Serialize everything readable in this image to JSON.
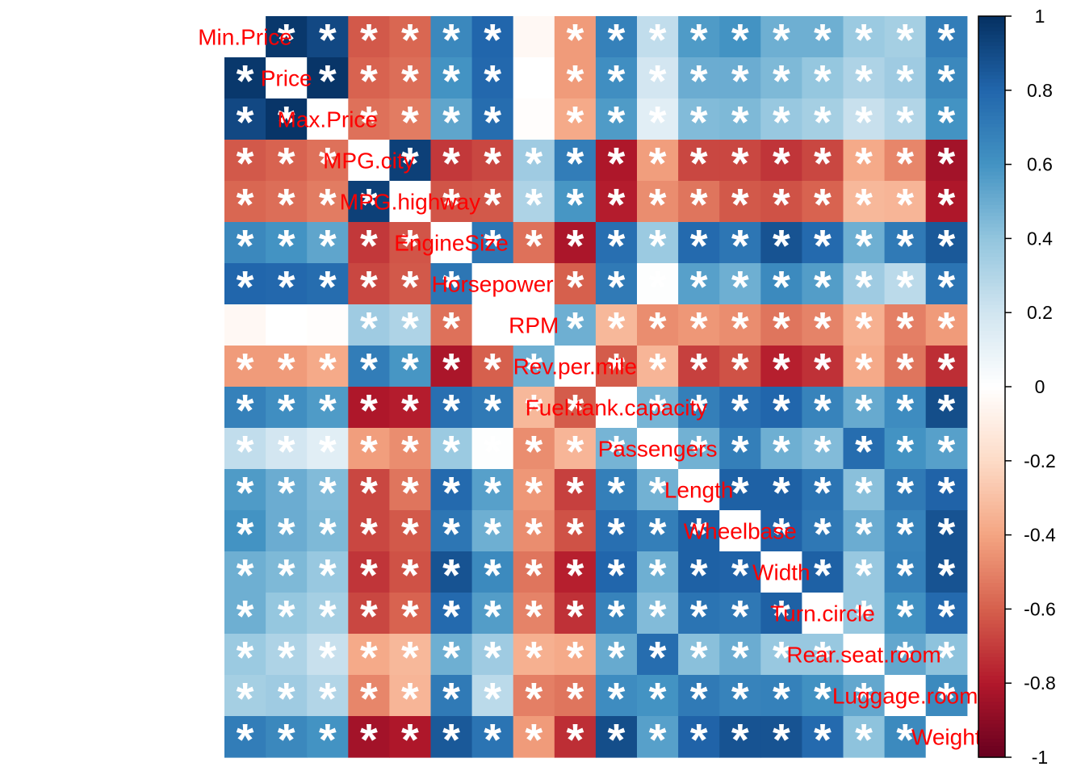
{
  "chart_data": {
    "type": "heatmap",
    "variables": [
      "Min.Price",
      "Price",
      "Max.Price",
      "MPG.city",
      "MPG.highway",
      "EngineSize",
      "Horsepower",
      "RPM",
      "Rev.per.mile",
      "Fuel.tank.capacity",
      "Passengers",
      "Length",
      "Wheelbase",
      "Width",
      "Turn.circle",
      "Rear.seat.room",
      "Luggage.room",
      "Weight"
    ],
    "values": [
      [
        1.0,
        0.97,
        0.91,
        -0.62,
        -0.58,
        0.65,
        0.8,
        -0.04,
        -0.43,
        0.68,
        0.25,
        0.57,
        0.6,
        0.49,
        0.49,
        0.37,
        0.34,
        0.7
      ],
      [
        0.97,
        1.0,
        0.98,
        -0.59,
        -0.56,
        0.6,
        0.79,
        -0.0,
        -0.43,
        0.62,
        0.19,
        0.5,
        0.5,
        0.45,
        0.39,
        0.31,
        0.36,
        0.65
      ],
      [
        0.91,
        0.98,
        1.0,
        -0.55,
        -0.52,
        0.53,
        0.77,
        -0.01,
        -0.38,
        0.57,
        0.13,
        0.44,
        0.45,
        0.38,
        0.34,
        0.23,
        0.3,
        0.6
      ],
      [
        -0.62,
        -0.59,
        -0.55,
        1.0,
        0.94,
        -0.71,
        -0.67,
        0.36,
        0.7,
        -0.81,
        -0.42,
        -0.67,
        -0.67,
        -0.72,
        -0.67,
        -0.38,
        -0.49,
        -0.84
      ],
      [
        -0.58,
        -0.56,
        -0.52,
        0.94,
        1.0,
        -0.63,
        -0.62,
        0.31,
        0.59,
        -0.79,
        -0.47,
        -0.54,
        -0.62,
        -0.64,
        -0.59,
        -0.33,
        -0.34,
        -0.81
      ],
      [
        0.65,
        0.6,
        0.53,
        -0.71,
        -0.63,
        1.0,
        0.73,
        -0.55,
        -0.82,
        0.76,
        0.37,
        0.78,
        0.73,
        0.87,
        0.78,
        0.49,
        0.71,
        0.85
      ],
      [
        0.8,
        0.79,
        0.77,
        -0.67,
        -0.62,
        0.73,
        1.0,
        0.0,
        -0.6,
        0.71,
        0.01,
        0.55,
        0.49,
        0.64,
        0.56,
        0.36,
        0.27,
        0.74
      ],
      [
        -0.04,
        -0.0,
        -0.01,
        0.36,
        0.31,
        -0.55,
        0.0,
        1.0,
        0.49,
        -0.33,
        -0.47,
        -0.44,
        -0.47,
        -0.54,
        -0.5,
        -0.36,
        -0.51,
        -0.43
      ],
      [
        -0.43,
        -0.43,
        -0.38,
        0.7,
        0.59,
        -0.82,
        -0.6,
        0.49,
        1.0,
        -0.61,
        -0.34,
        -0.69,
        -0.64,
        -0.78,
        -0.73,
        -0.38,
        -0.54,
        -0.74
      ],
      [
        0.68,
        0.62,
        0.57,
        -0.81,
        -0.79,
        0.76,
        0.71,
        -0.33,
        -0.61,
        1.0,
        0.47,
        0.69,
        0.76,
        0.8,
        0.67,
        0.51,
        0.63,
        0.89
      ],
      [
        0.25,
        0.19,
        0.13,
        -0.42,
        -0.47,
        0.37,
        0.01,
        -0.47,
        -0.34,
        0.47,
        1.0,
        0.48,
        0.69,
        0.49,
        0.44,
        0.77,
        0.6,
        0.55
      ],
      [
        0.57,
        0.5,
        0.44,
        -0.67,
        -0.54,
        0.78,
        0.55,
        -0.44,
        -0.69,
        0.69,
        0.48,
        1.0,
        0.82,
        0.82,
        0.74,
        0.42,
        0.71,
        0.81
      ],
      [
        0.6,
        0.5,
        0.45,
        -0.67,
        -0.62,
        0.73,
        0.49,
        -0.47,
        -0.64,
        0.76,
        0.69,
        0.82,
        1.0,
        0.81,
        0.72,
        0.5,
        0.67,
        0.87
      ],
      [
        0.49,
        0.45,
        0.38,
        -0.72,
        -0.64,
        0.87,
        0.64,
        -0.54,
        -0.78,
        0.8,
        0.49,
        0.82,
        0.81,
        1.0,
        0.82,
        0.38,
        0.68,
        0.87
      ],
      [
        0.49,
        0.39,
        0.34,
        -0.67,
        -0.59,
        0.78,
        0.56,
        -0.5,
        -0.73,
        0.67,
        0.44,
        0.74,
        0.72,
        0.82,
        1.0,
        0.38,
        0.61,
        0.78
      ],
      [
        0.37,
        0.31,
        0.23,
        -0.38,
        -0.33,
        0.49,
        0.36,
        -0.36,
        -0.38,
        0.51,
        0.77,
        0.42,
        0.5,
        0.38,
        0.38,
        1.0,
        0.52,
        0.41
      ],
      [
        0.34,
        0.36,
        0.3,
        -0.49,
        -0.34,
        0.71,
        0.27,
        -0.51,
        -0.54,
        0.63,
        0.6,
        0.71,
        0.67,
        0.68,
        0.61,
        0.52,
        1.0,
        0.64
      ],
      [
        0.7,
        0.65,
        0.6,
        -0.84,
        -0.81,
        0.85,
        0.74,
        -0.43,
        -0.74,
        0.89,
        0.55,
        0.81,
        0.87,
        0.87,
        0.78,
        0.41,
        0.64,
        1.0
      ]
    ],
    "significant": [
      [
        0,
        1,
        1,
        1,
        1,
        1,
        1,
        0,
        1,
        1,
        1,
        1,
        1,
        1,
        1,
        1,
        1,
        1
      ],
      [
        1,
        0,
        1,
        1,
        1,
        1,
        1,
        0,
        1,
        1,
        1,
        1,
        1,
        1,
        1,
        1,
        1,
        1
      ],
      [
        1,
        1,
        0,
        1,
        1,
        1,
        1,
        0,
        1,
        1,
        1,
        1,
        1,
        1,
        1,
        1,
        1,
        1
      ],
      [
        1,
        1,
        1,
        0,
        1,
        1,
        1,
        1,
        1,
        1,
        1,
        1,
        1,
        1,
        1,
        1,
        1,
        1
      ],
      [
        1,
        1,
        1,
        1,
        0,
        1,
        1,
        1,
        1,
        1,
        1,
        1,
        1,
        1,
        1,
        1,
        1,
        1
      ],
      [
        1,
        1,
        1,
        1,
        1,
        0,
        1,
        1,
        1,
        1,
        1,
        1,
        1,
        1,
        1,
        1,
        1,
        1
      ],
      [
        1,
        1,
        1,
        1,
        1,
        1,
        0,
        0,
        1,
        1,
        1,
        1,
        1,
        1,
        1,
        1,
        1,
        1
      ],
      [
        0,
        0,
        0,
        1,
        1,
        1,
        0,
        0,
        1,
        1,
        1,
        1,
        1,
        1,
        1,
        1,
        1,
        1
      ],
      [
        1,
        1,
        1,
        1,
        1,
        1,
        1,
        1,
        0,
        1,
        1,
        1,
        1,
        1,
        1,
        1,
        1,
        1
      ],
      [
        1,
        1,
        1,
        1,
        1,
        1,
        1,
        1,
        1,
        0,
        1,
        1,
        1,
        1,
        1,
        1,
        1,
        1
      ],
      [
        1,
        1,
        1,
        1,
        1,
        1,
        1,
        1,
        1,
        1,
        0,
        1,
        1,
        1,
        1,
        1,
        1,
        1
      ],
      [
        1,
        1,
        1,
        1,
        1,
        1,
        1,
        1,
        1,
        1,
        1,
        0,
        1,
        1,
        1,
        1,
        1,
        1
      ],
      [
        1,
        1,
        1,
        1,
        1,
        1,
        1,
        1,
        1,
        1,
        1,
        1,
        0,
        1,
        1,
        1,
        1,
        1
      ],
      [
        1,
        1,
        1,
        1,
        1,
        1,
        1,
        1,
        1,
        1,
        1,
        1,
        1,
        0,
        1,
        1,
        1,
        1
      ],
      [
        1,
        1,
        1,
        1,
        1,
        1,
        1,
        1,
        1,
        1,
        1,
        1,
        1,
        1,
        0,
        1,
        1,
        1
      ],
      [
        1,
        1,
        1,
        1,
        1,
        1,
        1,
        1,
        1,
        1,
        1,
        1,
        1,
        1,
        1,
        0,
        1,
        1
      ],
      [
        1,
        1,
        1,
        1,
        1,
        1,
        1,
        1,
        1,
        1,
        1,
        1,
        1,
        1,
        1,
        1,
        0,
        1
      ],
      [
        1,
        1,
        1,
        1,
        1,
        1,
        1,
        1,
        1,
        1,
        1,
        1,
        1,
        1,
        1,
        1,
        1,
        0
      ]
    ],
    "significance_marker": "*",
    "colorbar_ticks": [
      "1",
      "0.8",
      "0.6",
      "0.4",
      "0.2",
      "0",
      "-0.2",
      "-0.4",
      "-0.6",
      "-0.8",
      "-1"
    ],
    "colorbar_range": [
      -1,
      1
    ],
    "colorbar_placement": "right",
    "colors": {
      "palette": [
        "#67001f",
        "#b2182b",
        "#d6604d",
        "#f4a582",
        "#fddbc7",
        "#ffffff",
        "#d1e5f0",
        "#92c5de",
        "#4393c3",
        "#2166ac",
        "#053061"
      ],
      "label": "#ff0000",
      "marker": "#ffffff"
    }
  }
}
